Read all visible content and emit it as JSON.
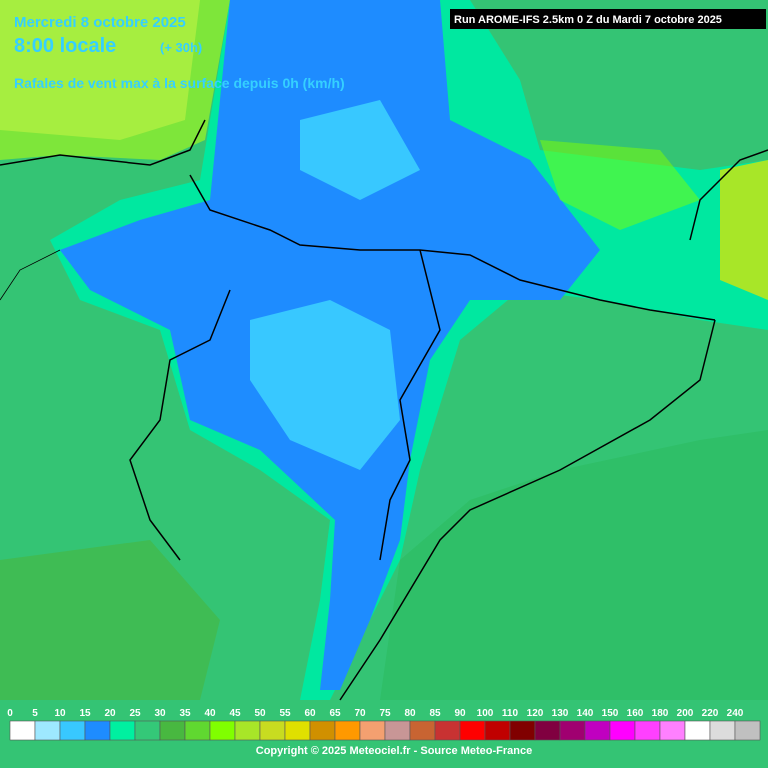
{
  "header": {
    "date": "Mercredi 8 octobre 2025",
    "time": "8:00 locale",
    "lead": "(+ 30h)",
    "parameter": "Rafales de vent max à la surface depuis 0h (km/h)"
  },
  "run_info": "Run AROME-IFS 2.5km 0 Z du Mardi 7 octobre 2025",
  "legend": {
    "labels": [
      0,
      5,
      10,
      15,
      20,
      25,
      30,
      35,
      40,
      45,
      50,
      55,
      60,
      65,
      70,
      75,
      80,
      85,
      90,
      100,
      110,
      120,
      130,
      140,
      150,
      160,
      180,
      200,
      220,
      240
    ],
    "colors": [
      "#ffffff",
      "#9ee8ff",
      "#38c8ff",
      "#1e8cff",
      "#00f0a0",
      "#34c878",
      "#48b840",
      "#60d830",
      "#80ff00",
      "#a8e628",
      "#c8dc20",
      "#e0e000",
      "#d09000",
      "#ff9900",
      "#f4a070",
      "#c89696",
      "#c86432",
      "#c83232",
      "#ff0000",
      "#c00000",
      "#800000",
      "#800040",
      "#a00070",
      "#c000c0",
      "#ff00ff",
      "#ff40ff",
      "#ff80ff",
      "#ffffff",
      "#dcdcdc",
      "#c0c0c0"
    ]
  },
  "footer": {
    "copyright": "Copyright © 2025 Meteociel.fr - Source Meteo-France"
  }
}
